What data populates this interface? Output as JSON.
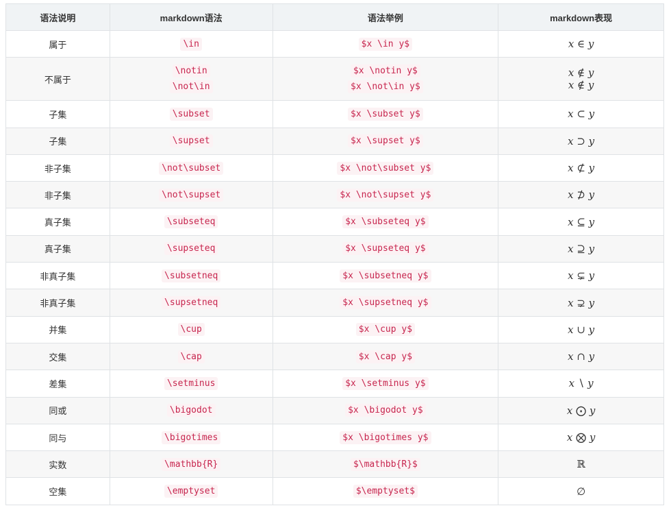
{
  "headers": [
    "语法说明",
    "markdown语法",
    "语法举例",
    "markdown表现"
  ],
  "rows": [
    {
      "desc": "属于",
      "syntax": [
        "\\in"
      ],
      "example": [
        "$x \\in y$"
      ],
      "render": [
        "x ∈ y"
      ]
    },
    {
      "desc": "不属于",
      "syntax": [
        "\\notin",
        "\\not\\in"
      ],
      "example": [
        "$x \\notin y$",
        "$x \\not\\in y$"
      ],
      "render": [
        "x ∉ y",
        "x ∉ y"
      ]
    },
    {
      "desc": "子集",
      "syntax": [
        "\\subset"
      ],
      "example": [
        "$x \\subset y$"
      ],
      "render": [
        "x ⊂ y"
      ]
    },
    {
      "desc": "子集",
      "syntax": [
        "\\supset"
      ],
      "example": [
        "$x \\supset y$"
      ],
      "render": [
        "x ⊃ y"
      ]
    },
    {
      "desc": "非子集",
      "syntax": [
        "\\not\\subset"
      ],
      "example": [
        "$x \\not\\subset y$"
      ],
      "render": [
        "x ⊄ y"
      ]
    },
    {
      "desc": "非子集",
      "syntax": [
        "\\not\\supset"
      ],
      "example": [
        "$x \\not\\supset y$"
      ],
      "render": [
        "x ⊅ y"
      ]
    },
    {
      "desc": "真子集",
      "syntax": [
        "\\subseteq"
      ],
      "example": [
        "$x \\subseteq y$"
      ],
      "render": [
        "x ⊆ y"
      ]
    },
    {
      "desc": "真子集",
      "syntax": [
        "\\supseteq"
      ],
      "example": [
        "$x \\supseteq y$"
      ],
      "render": [
        "x ⊇ y"
      ]
    },
    {
      "desc": "非真子集",
      "syntax": [
        "\\subsetneq"
      ],
      "example": [
        "$x \\subsetneq y$"
      ],
      "render": [
        "x ⊊ y"
      ]
    },
    {
      "desc": "非真子集",
      "syntax": [
        "\\supsetneq"
      ],
      "example": [
        "$x \\supsetneq y$"
      ],
      "render": [
        "x ⊋ y"
      ]
    },
    {
      "desc": "并集",
      "syntax": [
        "\\cup"
      ],
      "example": [
        "$x \\cup y$"
      ],
      "render": [
        "x ∪ y"
      ]
    },
    {
      "desc": "交集",
      "syntax": [
        "\\cap"
      ],
      "example": [
        "$x \\cap y$"
      ],
      "render": [
        "x ∩ y"
      ]
    },
    {
      "desc": "差集",
      "syntax": [
        "\\setminus"
      ],
      "example": [
        "$x \\setminus y$"
      ],
      "render": [
        "x ∖ y"
      ]
    },
    {
      "desc": "同或",
      "syntax": [
        "\\bigodot"
      ],
      "example": [
        "$x \\bigodot y$"
      ],
      "render": [
        "x ⨀ y"
      ]
    },
    {
      "desc": "同与",
      "syntax": [
        "\\bigotimes"
      ],
      "example": [
        "$x \\bigotimes y$"
      ],
      "render": [
        "x ⨂ y"
      ]
    },
    {
      "desc": "实数",
      "syntax": [
        "\\mathbb{R}"
      ],
      "example": [
        "$\\mathbb{R}$"
      ],
      "render": [
        "ℝ"
      ]
    },
    {
      "desc": "空集",
      "syntax": [
        "\\emptyset"
      ],
      "example": [
        "$\\emptyset$"
      ],
      "render": [
        "∅"
      ]
    }
  ]
}
